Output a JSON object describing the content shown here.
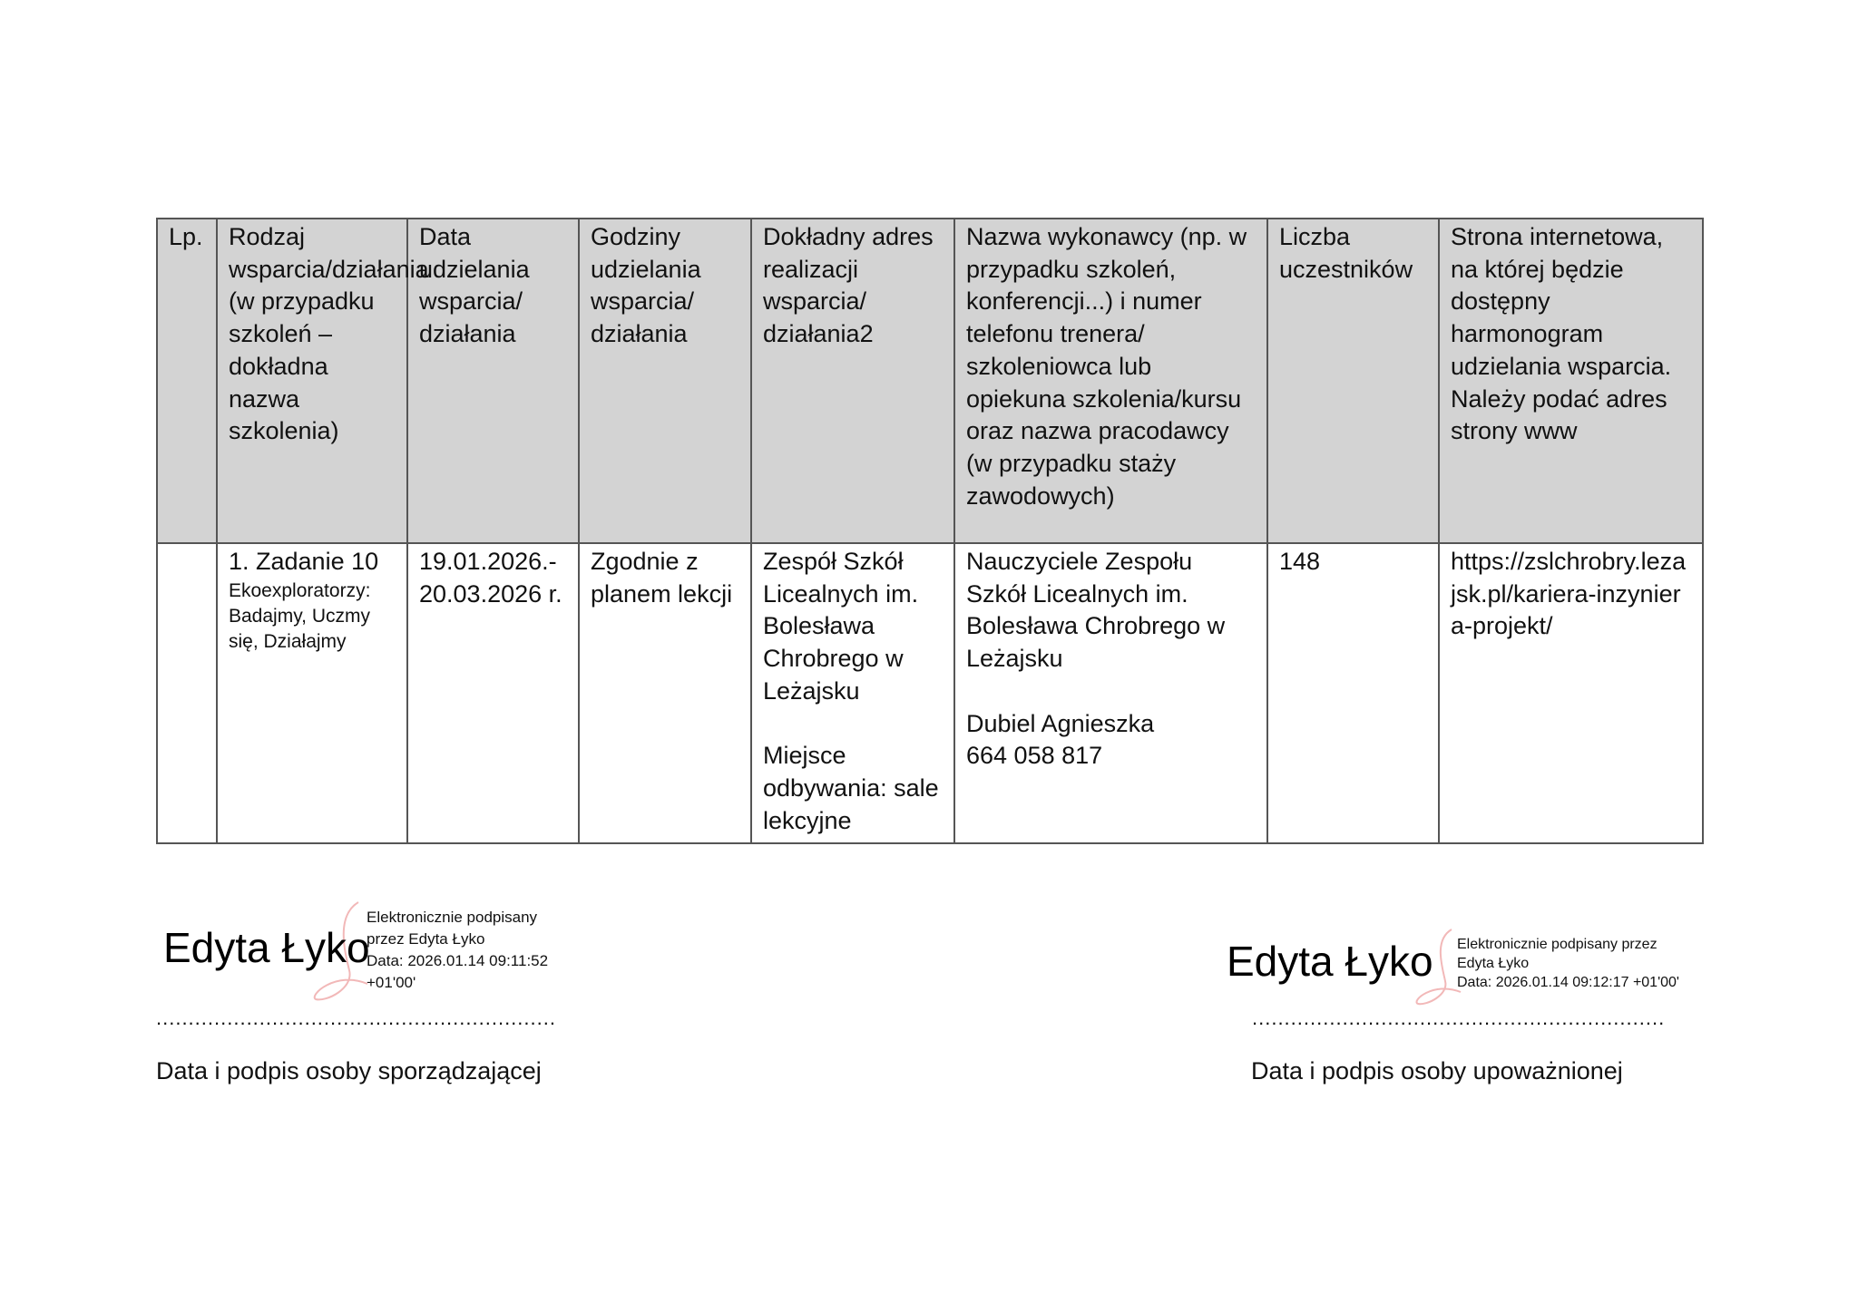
{
  "table": {
    "headers": [
      "Lp.",
      "Rodzaj wsparcia/działania (w przypadku szkoleń – dokładna nazwa szkolenia)",
      "Data udzielania wsparcia/ działania",
      "Godziny udzielania wsparcia/ działania",
      "Dokładny adres realizacji wsparcia/ działania2",
      "Nazwa wykonawcy (np. w przypadku szkoleń, konferencji...) i numer telefonu trenera/ szkoleniowca lub opiekuna szkolenia/kursu oraz nazwa pracodawcy (w przypadku staży zawodowych)",
      "Liczba uczestników",
      "Strona internetowa, na której będzie dostępny harmonogram udzielania wsparcia. Należy podać adres strony www"
    ],
    "row": {
      "lp": "",
      "type_title": "1. Zadanie 10",
      "type_subtitle": "Ekoexploratorzy: Badajmy, Uczmy się, Działajmy",
      "date": "19.01.2026.- 20.03.2026 r.",
      "hours": "Zgodnie z planem lekcji",
      "address": "Zespół Szkół Licealnych im. Bolesława Chrobrego w Leżajsku",
      "place": "Miejsce odbywania: sale lekcyjne",
      "contractor": "Nauczyciele Zespołu Szkół Licealnych im. Bolesława Chrobrego w Leżajsku",
      "contact_name": "Dubiel Agnieszka",
      "contact_phone": "664 058 817",
      "participants": "148",
      "website": "https://zslchrobry.lezajsk.pl/kariera-inzyniera-projekt/"
    }
  },
  "signatures": [
    {
      "name": "Edyta Łyko",
      "info": "Elektronicznie podpisany\nprzez Edyta Łyko\nData: 2026.01.14 09:11:52\n+01'00'",
      "dots": "..................................................................",
      "caption": "Data i podpis osoby sporządzającej"
    },
    {
      "name": "Edyta Łyko",
      "info": "Elektronicznie podpisany przez\nEdyta Łyko\nData: 2026.01.14 09:12:17 +01'00'",
      "dots": "....................................................................",
      "caption": "Data i podpis osoby upoważnionej"
    }
  ],
  "colors": {
    "header_bg": "#d3d3d3",
    "border": "#555555",
    "signature_mark": "#f2b8b8"
  }
}
